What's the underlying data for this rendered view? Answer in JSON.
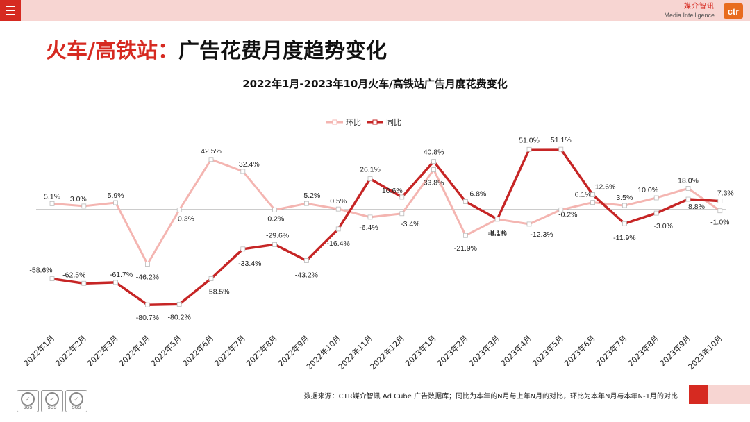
{
  "header": {
    "brand_cn": "媒介智讯",
    "brand_en": "Media Intelligence",
    "logo_text": "ctr",
    "icons": [
      "menu-icon",
      "ctr-logo-icon"
    ]
  },
  "title": {
    "part_red": "火车/高铁站：",
    "part_black": "广告花费月度趋势变化"
  },
  "footer": {
    "note": "数据来源：CTR媒介智讯 Ad Cube 广告数据库；同比为本年的N月与上年N月的对比，环比为本年N月与本年N-1月的对比",
    "badges": [
      {
        "label": "SGS"
      },
      {
        "label": "SGS"
      },
      {
        "label": "SGS"
      }
    ]
  },
  "colors": {
    "hb": "#f4b5b1",
    "tb": "#c62525",
    "accent": "#d62a21"
  },
  "chart_data": {
    "type": "line",
    "title": "2022年1月-2023年10月火车/高铁站广告月度花费变化",
    "categories": [
      "2022年1月",
      "2022年2月",
      "2022年3月",
      "2022年4月",
      "2022年5月",
      "2022年6月",
      "2022年7月",
      "2022年8月",
      "2022年9月",
      "2022年10月",
      "2022年11月",
      "2022年12月",
      "2023年1月",
      "2023年2月",
      "2023年3月",
      "2023年4月",
      "2023年5月",
      "2023年6月",
      "2023年7月",
      "2023年8月",
      "2023年9月",
      "2023年10月"
    ],
    "legend_position": "top",
    "grid": false,
    "ylim": [
      -100,
      60
    ],
    "series": [
      {
        "name": "环比",
        "values": [
          5.1,
          3.0,
          5.9,
          -46.2,
          -0.3,
          42.5,
          32.4,
          -0.2,
          5.2,
          0.5,
          -6.4,
          -3.4,
          33.8,
          -21.9,
          -8.1,
          -12.3,
          -0.2,
          6.1,
          3.5,
          10.0,
          18.0,
          -1.0
        ],
        "labels": [
          "5.1%",
          "3.0%",
          "5.9%",
          "-46.2%",
          "-0.3%",
          "42.5%",
          "32.4%",
          "-0.2%",
          "5.2%",
          "0.5%",
          "-6.4%",
          "-3.4%",
          "33.8%",
          "-21.9%",
          "-8.1%",
          "-12.3%",
          "-0.2%",
          "6.1%",
          "3.5%",
          "10.0%",
          "18.0%",
          "-1.0%"
        ]
      },
      {
        "name": "同比",
        "values": [
          -58.6,
          -62.5,
          -61.7,
          -80.7,
          -80.2,
          -58.5,
          -33.4,
          -29.6,
          -43.2,
          -16.4,
          26.1,
          10.6,
          40.8,
          6.8,
          -8.1,
          51.0,
          51.1,
          12.6,
          -11.9,
          -3.0,
          8.8,
          7.3
        ],
        "labels": [
          "-58.6%",
          "-62.5%",
          "-61.7%",
          "-80.7%",
          "-80.2%",
          "-58.5%",
          "-33.4%",
          "-29.6%",
          "-43.2%",
          "-16.4%",
          "26.1%",
          "10.6%",
          "40.8%",
          "6.8%",
          "-8.1%",
          "51.0%",
          "51.1%",
          "12.6%",
          "-11.9%",
          "-3.0%",
          "8.8%",
          "7.3%"
        ]
      }
    ]
  }
}
